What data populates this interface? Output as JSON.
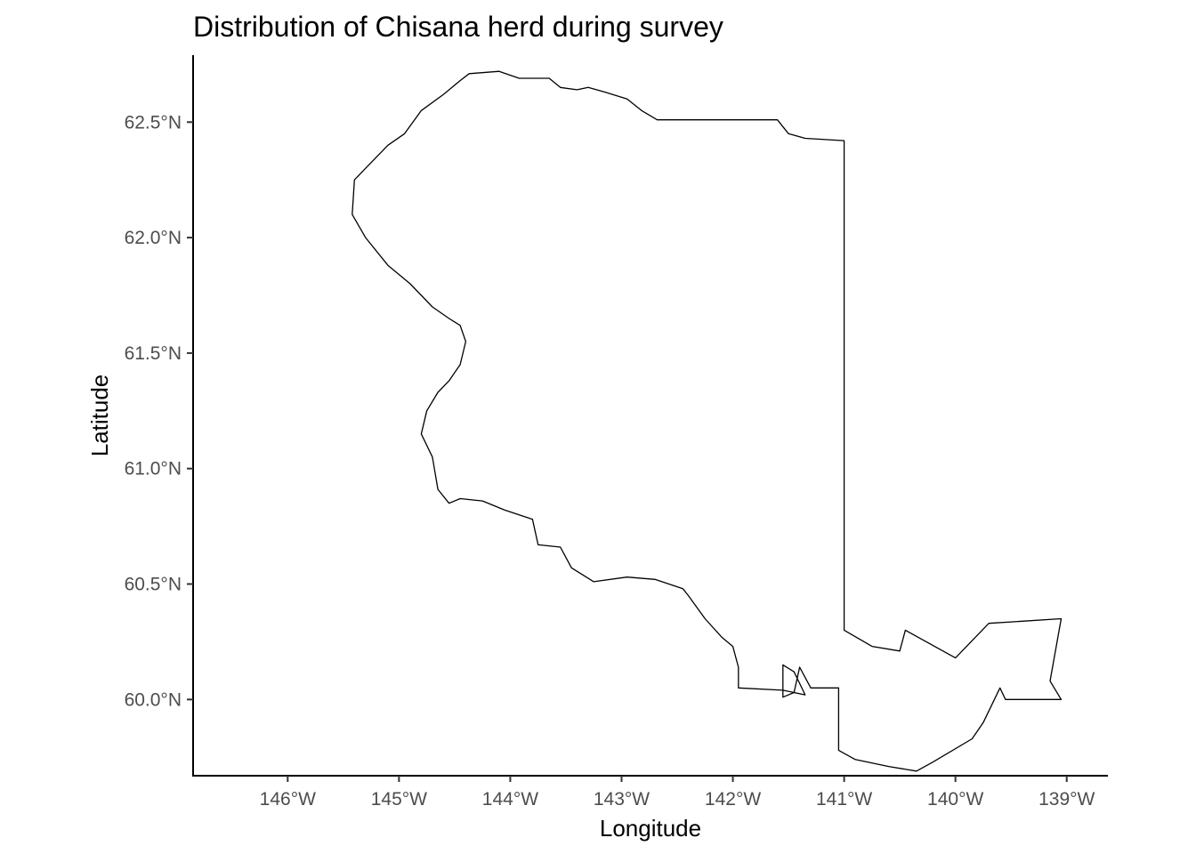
{
  "chart_data": {
    "type": "map",
    "title": "Distribution of Chisana herd during survey",
    "xlabel": "Longitude",
    "ylabel": "Latitude",
    "xlim": [
      -146.85,
      -138.63
    ],
    "ylim": [
      59.67,
      62.79
    ],
    "x_ticks": [
      {
        "value": -146,
        "label": "146°W"
      },
      {
        "value": -145,
        "label": "145°W"
      },
      {
        "value": -144,
        "label": "144°W"
      },
      {
        "value": -143,
        "label": "143°W"
      },
      {
        "value": -142,
        "label": "142°W"
      },
      {
        "value": -141,
        "label": "141°W"
      },
      {
        "value": -140,
        "label": "140°W"
      },
      {
        "value": -139,
        "label": "139°W"
      }
    ],
    "y_ticks": [
      {
        "value": 60.0,
        "label": "60.0°N"
      },
      {
        "value": 60.5,
        "label": "60.5°N"
      },
      {
        "value": 61.0,
        "label": "61.0°N"
      },
      {
        "value": 61.5,
        "label": "61.5°N"
      },
      {
        "value": 62.0,
        "label": "62.0°N"
      },
      {
        "value": 62.5,
        "label": "62.5°N"
      }
    ],
    "grid": false,
    "boundary": [
      [
        -144.37,
        62.71
      ],
      [
        -144.1,
        62.72
      ],
      [
        -143.92,
        62.69
      ],
      [
        -143.65,
        62.69
      ],
      [
        -143.55,
        62.65
      ],
      [
        -143.4,
        62.64
      ],
      [
        -143.3,
        62.65
      ],
      [
        -143.15,
        62.63
      ],
      [
        -142.95,
        62.6
      ],
      [
        -142.82,
        62.55
      ],
      [
        -142.68,
        62.51
      ],
      [
        -142.3,
        62.51
      ],
      [
        -142.0,
        62.51
      ],
      [
        -141.6,
        62.51
      ],
      [
        -141.5,
        62.45
      ],
      [
        -141.35,
        62.43
      ],
      [
        -141.0,
        62.42
      ],
      [
        -141.0,
        61.5
      ],
      [
        -141.0,
        60.3
      ],
      [
        -140.75,
        60.23
      ],
      [
        -140.5,
        60.21
      ],
      [
        -140.45,
        60.3
      ],
      [
        -140.0,
        60.18
      ],
      [
        -139.7,
        60.33
      ],
      [
        -139.05,
        60.35
      ],
      [
        -139.15,
        60.08
      ],
      [
        -139.05,
        60.0
      ],
      [
        -139.55,
        60.0
      ],
      [
        -139.6,
        60.05
      ],
      [
        -139.75,
        59.9
      ],
      [
        -139.85,
        59.83
      ],
      [
        -140.2,
        59.73
      ],
      [
        -140.35,
        59.69
      ],
      [
        -140.6,
        59.71
      ],
      [
        -140.9,
        59.74
      ],
      [
        -141.05,
        59.78
      ],
      [
        -141.05,
        60.05
      ],
      [
        -141.3,
        60.05
      ],
      [
        -141.4,
        60.14
      ],
      [
        -141.45,
        60.03
      ],
      [
        -141.55,
        60.01
      ],
      [
        -141.55,
        60.15
      ],
      [
        -141.45,
        60.12
      ],
      [
        -141.35,
        60.02
      ],
      [
        -141.55,
        60.04
      ],
      [
        -141.95,
        60.05
      ],
      [
        -141.95,
        60.14
      ],
      [
        -142.0,
        60.23
      ],
      [
        -142.1,
        60.27
      ],
      [
        -142.25,
        60.35
      ],
      [
        -142.4,
        60.45
      ],
      [
        -142.45,
        60.48
      ],
      [
        -142.7,
        60.52
      ],
      [
        -142.95,
        60.53
      ],
      [
        -143.25,
        60.51
      ],
      [
        -143.45,
        60.57
      ],
      [
        -143.55,
        60.66
      ],
      [
        -143.75,
        60.67
      ],
      [
        -143.8,
        60.78
      ],
      [
        -144.05,
        60.82
      ],
      [
        -144.25,
        60.86
      ],
      [
        -144.45,
        60.87
      ],
      [
        -144.55,
        60.85
      ],
      [
        -144.65,
        60.91
      ],
      [
        -144.7,
        61.05
      ],
      [
        -144.8,
        61.15
      ],
      [
        -144.75,
        61.25
      ],
      [
        -144.65,
        61.33
      ],
      [
        -144.55,
        61.38
      ],
      [
        -144.45,
        61.45
      ],
      [
        -144.4,
        61.55
      ],
      [
        -144.45,
        61.62
      ],
      [
        -144.55,
        61.65
      ],
      [
        -144.7,
        61.7
      ],
      [
        -144.9,
        61.8
      ],
      [
        -145.1,
        61.88
      ],
      [
        -145.3,
        62.0
      ],
      [
        -145.42,
        62.1
      ],
      [
        -145.4,
        62.25
      ],
      [
        -145.3,
        62.3
      ],
      [
        -145.1,
        62.4
      ],
      [
        -144.95,
        62.45
      ],
      [
        -144.8,
        62.55
      ],
      [
        -144.6,
        62.62
      ],
      [
        -144.45,
        62.68
      ],
      [
        -144.37,
        62.71
      ]
    ]
  }
}
